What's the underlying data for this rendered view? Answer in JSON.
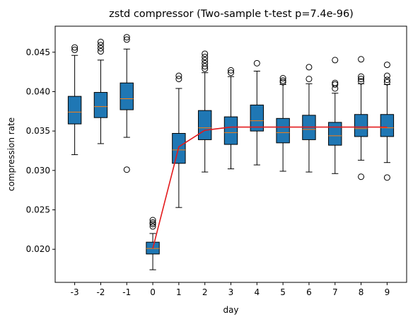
{
  "chart_data": {
    "type": "box",
    "title": "zstd compressor (Two-sample t-test p=7.4e-96)",
    "xlabel": "day",
    "ylabel": "compression rate",
    "ylim": [
      0.0158,
      0.0483
    ],
    "yticks": [
      0.02,
      0.025,
      0.03,
      0.035,
      0.04,
      0.045
    ],
    "ytick_labels": [
      "0.020",
      "0.025",
      "0.030",
      "0.035",
      "0.040",
      "0.045"
    ],
    "categories": [
      "-3",
      "-2",
      "-1",
      "0",
      "1",
      "2",
      "3",
      "4",
      "5",
      "6",
      "7",
      "8",
      "9"
    ],
    "colors": {
      "box_fill": "#1f77b4",
      "median": "#ff7f0e",
      "trend_line": "#e31a1c",
      "edge": "#000000"
    },
    "boxes": [
      {
        "q1": 0.0359,
        "median": 0.0374,
        "q3": 0.0394,
        "whislo": 0.032,
        "whishi": 0.0446,
        "fliers": [
          0.0453,
          0.0456
        ]
      },
      {
        "q1": 0.0367,
        "median": 0.0381,
        "q3": 0.0399,
        "whislo": 0.0334,
        "whishi": 0.044,
        "fliers": [
          0.0451,
          0.0455,
          0.0459,
          0.0463
        ]
      },
      {
        "q1": 0.0377,
        "median": 0.0391,
        "q3": 0.0411,
        "whislo": 0.0342,
        "whishi": 0.0454,
        "fliers": [
          0.0466,
          0.0469,
          0.0301
        ]
      },
      {
        "q1": 0.0194,
        "median": 0.0201,
        "q3": 0.0209,
        "whislo": 0.0174,
        "whishi": 0.022,
        "fliers": [
          0.0229,
          0.0232,
          0.0234,
          0.0237
        ]
      },
      {
        "q1": 0.0309,
        "median": 0.0326,
        "q3": 0.0347,
        "whislo": 0.0253,
        "whishi": 0.0404,
        "fliers": [
          0.0416,
          0.042
        ]
      },
      {
        "q1": 0.0339,
        "median": 0.0354,
        "q3": 0.0376,
        "whislo": 0.0298,
        "whishi": 0.0424,
        "fliers": [
          0.0429,
          0.0432,
          0.0436,
          0.044,
          0.0444,
          0.0448
        ]
      },
      {
        "q1": 0.0333,
        "median": 0.0348,
        "q3": 0.0368,
        "whislo": 0.0302,
        "whishi": 0.0419,
        "fliers": [
          0.0424,
          0.0427
        ]
      },
      {
        "q1": 0.035,
        "median": 0.0363,
        "q3": 0.0383,
        "whislo": 0.0307,
        "whishi": 0.0426,
        "fliers": [
          0.0436
        ]
      },
      {
        "q1": 0.0335,
        "median": 0.0348,
        "q3": 0.0366,
        "whislo": 0.0299,
        "whishi": 0.0409,
        "fliers": [
          0.0412,
          0.0414,
          0.0417
        ]
      },
      {
        "q1": 0.0339,
        "median": 0.0352,
        "q3": 0.037,
        "whislo": 0.0298,
        "whishi": 0.041,
        "fliers": [
          0.0416,
          0.0431
        ]
      },
      {
        "q1": 0.0332,
        "median": 0.0344,
        "q3": 0.0361,
        "whislo": 0.0296,
        "whishi": 0.0398,
        "fliers": [
          0.0404,
          0.0409,
          0.0411,
          0.044
        ]
      },
      {
        "q1": 0.0343,
        "median": 0.0353,
        "q3": 0.0371,
        "whislo": 0.0313,
        "whishi": 0.041,
        "fliers": [
          0.0413,
          0.0416,
          0.0419,
          0.0441,
          0.0292
        ]
      },
      {
        "q1": 0.0343,
        "median": 0.0354,
        "q3": 0.0371,
        "whislo": 0.031,
        "whishi": 0.0409,
        "fliers": [
          0.0412,
          0.0415,
          0.042,
          0.0434,
          0.0291
        ]
      }
    ],
    "trend_line": {
      "x": [
        "0",
        "1",
        "2",
        "3",
        "4",
        "5",
        "6",
        "7",
        "8",
        "9"
      ],
      "y": [
        0.0201,
        0.033,
        0.0351,
        0.0355,
        0.0355,
        0.0355,
        0.0355,
        0.0355,
        0.0355,
        0.0355
      ]
    }
  }
}
